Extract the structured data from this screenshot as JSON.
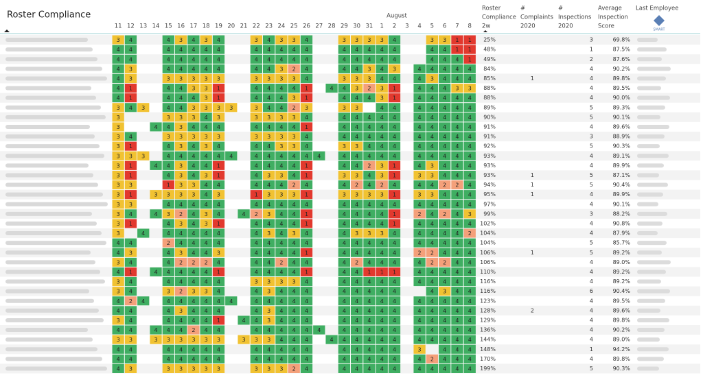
{
  "header": {
    "title": "Roster Compliance",
    "month": "August",
    "days": [
      11,
      12,
      13,
      14,
      15,
      16,
      17,
      18,
      19,
      20,
      21,
      22,
      23,
      24,
      25,
      26,
      27,
      28,
      29,
      30,
      31,
      1,
      2,
      3,
      4,
      5,
      6,
      7,
      8
    ]
  },
  "columns": [
    [
      "Roster",
      "Compliance",
      "2w"
    ],
    [
      "#",
      "Complaints",
      "2020"
    ],
    [
      "#",
      "Inspections",
      "2020"
    ],
    [
      "Average",
      "Inspection",
      "Score"
    ],
    [
      "Last Employee"
    ]
  ],
  "logo": "SMART",
  "palette": {
    "1": "#e2392e",
    "2": "#f4a07a",
    "3": "#f1c232",
    "4": "#3fae62"
  },
  "rows": [
    {
      "cells": [
        3,
        4,
        null,
        null,
        4,
        3,
        4,
        3,
        4,
        null,
        null,
        3,
        4,
        3,
        3,
        4,
        null,
        null,
        3,
        3,
        3,
        3,
        4,
        null,
        null,
        3,
        3,
        1,
        1
      ],
      "compliance": "25%",
      "complaints": null,
      "inspections": 3,
      "score": "69.8%"
    },
    {
      "cells": [
        4,
        4,
        null,
        null,
        4,
        4,
        4,
        4,
        4,
        null,
        null,
        4,
        4,
        4,
        4,
        4,
        null,
        null,
        4,
        4,
        4,
        4,
        4,
        null,
        null,
        4,
        4,
        1,
        1
      ],
      "compliance": "48%",
      "complaints": null,
      "inspections": 1,
      "score": "87.5%"
    },
    {
      "cells": [
        4,
        4,
        null,
        null,
        4,
        4,
        4,
        4,
        4,
        null,
        null,
        4,
        4,
        4,
        4,
        4,
        null,
        null,
        4,
        4,
        4,
        4,
        4,
        null,
        null,
        4,
        4,
        4,
        1
      ],
      "compliance": "49%",
      "complaints": null,
      "inspections": 2,
      "score": "87.6%"
    },
    {
      "cells": [
        4,
        3,
        null,
        null,
        4,
        4,
        4,
        4,
        4,
        null,
        null,
        4,
        4,
        3,
        2,
        4,
        null,
        null,
        4,
        4,
        3,
        4,
        3,
        null,
        4,
        4,
        4,
        4,
        4
      ],
      "compliance": "84%",
      "complaints": null,
      "inspections": 4,
      "score": "90.2%"
    },
    {
      "cells": [
        4,
        3,
        null,
        null,
        3,
        3,
        3,
        3,
        3,
        null,
        null,
        3,
        3,
        3,
        3,
        4,
        null,
        null,
        3,
        3,
        3,
        4,
        4,
        null,
        4,
        3,
        4,
        4,
        4
      ],
      "compliance": "85%",
      "complaints": 1,
      "inspections": 4,
      "score": "89.8%"
    },
    {
      "cells": [
        4,
        1,
        null,
        null,
        4,
        4,
        3,
        3,
        1,
        null,
        null,
        4,
        4,
        4,
        4,
        1,
        null,
        4,
        4,
        3,
        2,
        3,
        1,
        null,
        4,
        4,
        4,
        3,
        3
      ],
      "compliance": "88%",
      "complaints": null,
      "inspections": 4,
      "score": "89.5%"
    },
    {
      "cells": [
        4,
        1,
        null,
        null,
        4,
        4,
        4,
        3,
        1,
        null,
        null,
        4,
        4,
        4,
        3,
        1,
        null,
        null,
        4,
        4,
        4,
        3,
        1,
        null,
        4,
        4,
        4,
        4,
        4
      ],
      "compliance": "88%",
      "complaints": null,
      "inspections": 4,
      "score": "90.0%"
    },
    {
      "cells": [
        3,
        4,
        3,
        null,
        4,
        4,
        3,
        3,
        3,
        3,
        null,
        3,
        4,
        4,
        2,
        3,
        null,
        null,
        3,
        3,
        null,
        4,
        4,
        null,
        4,
        4,
        4,
        4,
        4
      ],
      "compliance": "89%",
      "complaints": null,
      "inspections": 5,
      "score": "89.3%"
    },
    {
      "cells": [
        3,
        null,
        null,
        null,
        3,
        3,
        3,
        4,
        3,
        null,
        null,
        3,
        3,
        3,
        3,
        4,
        null,
        null,
        4,
        4,
        4,
        4,
        4,
        null,
        4,
        4,
        4,
        4,
        4
      ],
      "compliance": "90%",
      "complaints": null,
      "inspections": 5,
      "score": "90.1%"
    },
    {
      "cells": [
        3,
        null,
        null,
        4,
        4,
        3,
        4,
        4,
        4,
        null,
        null,
        4,
        4,
        4,
        4,
        1,
        null,
        null,
        4,
        4,
        4,
        4,
        4,
        null,
        4,
        4,
        4,
        4,
        4
      ],
      "compliance": "91%",
      "complaints": null,
      "inspections": 4,
      "score": "89.6%"
    },
    {
      "cells": [
        3,
        4,
        null,
        null,
        3,
        3,
        3,
        3,
        3,
        null,
        null,
        3,
        3,
        3,
        3,
        4,
        null,
        null,
        4,
        4,
        4,
        4,
        4,
        null,
        4,
        4,
        4,
        4,
        4
      ],
      "compliance": "91%",
      "complaints": null,
      "inspections": 3,
      "score": "88.9%"
    },
    {
      "cells": [
        3,
        1,
        null,
        null,
        4,
        3,
        4,
        3,
        4,
        null,
        null,
        4,
        4,
        3,
        3,
        4,
        null,
        null,
        3,
        3,
        4,
        4,
        4,
        null,
        4,
        4,
        4,
        4,
        4
      ],
      "compliance": "92%",
      "complaints": null,
      "inspections": 5,
      "score": "90.3%"
    },
    {
      "cells": [
        3,
        3,
        3,
        null,
        4,
        4,
        4,
        4,
        4,
        4,
        null,
        4,
        4,
        4,
        4,
        4,
        4,
        null,
        4,
        4,
        4,
        4,
        4,
        null,
        4,
        4,
        4,
        4,
        4
      ],
      "compliance": "93%",
      "complaints": null,
      "inspections": 4,
      "score": "89.1%"
    },
    {
      "cells": [
        3,
        1,
        null,
        4,
        4,
        3,
        4,
        4,
        1,
        null,
        null,
        4,
        4,
        4,
        4,
        1,
        null,
        null,
        4,
        4,
        2,
        3,
        1,
        null,
        4,
        3,
        4,
        4,
        4
      ],
      "compliance": "93%",
      "complaints": null,
      "inspections": 4,
      "score": "89.9%"
    },
    {
      "cells": [
        3,
        1,
        null,
        null,
        4,
        3,
        4,
        3,
        1,
        null,
        null,
        4,
        3,
        3,
        4,
        1,
        null,
        null,
        3,
        3,
        4,
        3,
        1,
        null,
        3,
        3,
        4,
        4,
        4
      ],
      "compliance": "93%",
      "complaints": 1,
      "inspections": 5,
      "score": "87.1%"
    },
    {
      "cells": [
        3,
        3,
        null,
        null,
        1,
        3,
        3,
        4,
        4,
        null,
        null,
        4,
        4,
        4,
        2,
        4,
        null,
        null,
        4,
        2,
        4,
        2,
        4,
        null,
        4,
        4,
        2,
        2,
        4
      ],
      "compliance": "94%",
      "complaints": 1,
      "inspections": 5,
      "score": "90.4%"
    },
    {
      "cells": [
        3,
        1,
        null,
        3,
        3,
        3,
        3,
        4,
        3,
        null,
        null,
        1,
        3,
        3,
        3,
        1,
        null,
        null,
        3,
        3,
        3,
        3,
        1,
        null,
        3,
        3,
        4,
        4,
        4
      ],
      "compliance": "95%",
      "complaints": 1,
      "inspections": 4,
      "score": "89.9%"
    },
    {
      "cells": [
        3,
        3,
        null,
        null,
        4,
        4,
        4,
        4,
        4,
        null,
        null,
        4,
        4,
        4,
        4,
        4,
        null,
        null,
        4,
        4,
        4,
        4,
        4,
        null,
        4,
        4,
        4,
        4,
        4
      ],
      "compliance": "97%",
      "complaints": null,
      "inspections": 4,
      "score": "90.1%"
    },
    {
      "cells": [
        3,
        4,
        null,
        4,
        3,
        2,
        4,
        3,
        4,
        null,
        4,
        2,
        3,
        4,
        4,
        1,
        null,
        null,
        4,
        4,
        4,
        4,
        1,
        null,
        2,
        4,
        2,
        4,
        3
      ],
      "compliance": "99%",
      "complaints": null,
      "inspections": 3,
      "score": "88.2%"
    },
    {
      "cells": [
        3,
        1,
        null,
        null,
        4,
        3,
        4,
        3,
        1,
        null,
        null,
        4,
        4,
        4,
        4,
        1,
        null,
        null,
        4,
        4,
        4,
        4,
        1,
        null,
        4,
        4,
        4,
        4,
        4
      ],
      "compliance": "102%",
      "complaints": null,
      "inspections": 4,
      "score": "90.8%"
    },
    {
      "cells": [
        3,
        null,
        4,
        null,
        4,
        4,
        4,
        4,
        4,
        null,
        null,
        4,
        3,
        4,
        3,
        4,
        null,
        null,
        4,
        3,
        3,
        3,
        4,
        null,
        4,
        4,
        4,
        4,
        2
      ],
      "compliance": "104%",
      "complaints": null,
      "inspections": 4,
      "score": "87.9%"
    },
    {
      "cells": [
        4,
        4,
        null,
        null,
        2,
        4,
        4,
        4,
        4,
        null,
        null,
        4,
        4,
        4,
        4,
        4,
        null,
        null,
        4,
        4,
        4,
        4,
        4,
        null,
        4,
        4,
        4,
        4,
        4
      ],
      "compliance": "104%",
      "complaints": null,
      "inspections": 5,
      "score": "85.7%"
    },
    {
      "cells": [
        4,
        3,
        null,
        null,
        4,
        3,
        4,
        4,
        3,
        null,
        null,
        4,
        4,
        4,
        4,
        1,
        null,
        null,
        4,
        4,
        4,
        4,
        4,
        null,
        2,
        2,
        4,
        4,
        4
      ],
      "compliance": "106%",
      "complaints": 1,
      "inspections": 5,
      "score": "89.2%"
    },
    {
      "cells": [
        3,
        4,
        null,
        null,
        4,
        2,
        2,
        2,
        4,
        null,
        null,
        4,
        4,
        2,
        4,
        4,
        null,
        null,
        4,
        2,
        4,
        4,
        4,
        null,
        4,
        2,
        2,
        4,
        4
      ],
      "compliance": "106%",
      "complaints": null,
      "inspections": 4,
      "score": "89.0%"
    },
    {
      "cells": [
        4,
        1,
        null,
        4,
        4,
        4,
        4,
        4,
        1,
        null,
        null,
        4,
        4,
        4,
        4,
        1,
        null,
        null,
        4,
        4,
        1,
        1,
        1,
        null,
        4,
        4,
        4,
        4,
        4
      ],
      "compliance": "110%",
      "complaints": null,
      "inspections": 4,
      "score": "89.2%"
    },
    {
      "cells": [
        3,
        4,
        null,
        null,
        4,
        4,
        4,
        4,
        4,
        null,
        null,
        3,
        3,
        3,
        3,
        4,
        null,
        null,
        4,
        4,
        4,
        4,
        4,
        null,
        4,
        4,
        4,
        4,
        4
      ],
      "compliance": "116%",
      "complaints": null,
      "inspections": 4,
      "score": "89.2%"
    },
    {
      "cells": [
        3,
        4,
        null,
        null,
        3,
        2,
        3,
        3,
        4,
        null,
        null,
        4,
        3,
        4,
        4,
        4,
        null,
        null,
        4,
        4,
        4,
        4,
        4,
        null,
        null,
        4,
        3,
        4,
        4
      ],
      "compliance": "116%",
      "complaints": null,
      "inspections": 6,
      "score": "90.4%"
    },
    {
      "cells": [
        4,
        2,
        4,
        null,
        4,
        4,
        4,
        4,
        4,
        4,
        null,
        4,
        4,
        4,
        4,
        4,
        null,
        null,
        4,
        4,
        4,
        4,
        4,
        null,
        4,
        4,
        4,
        4,
        4
      ],
      "compliance": "123%",
      "complaints": null,
      "inspections": 4,
      "score": "89.5%"
    },
    {
      "cells": [
        4,
        4,
        null,
        null,
        4,
        3,
        4,
        4,
        4,
        null,
        null,
        4,
        3,
        4,
        4,
        4,
        null,
        null,
        4,
        4,
        4,
        4,
        4,
        null,
        4,
        4,
        4,
        4,
        4
      ],
      "compliance": "128%",
      "complaints": 2,
      "inspections": 4,
      "score": "89.6%"
    },
    {
      "cells": [
        3,
        4,
        null,
        null,
        4,
        4,
        4,
        4,
        1,
        null,
        4,
        4,
        3,
        4,
        4,
        4,
        null,
        null,
        4,
        4,
        4,
        4,
        4,
        null,
        4,
        4,
        4,
        4,
        4
      ],
      "compliance": "129%",
      "complaints": null,
      "inspections": 4,
      "score": "89.8%"
    },
    {
      "cells": [
        4,
        4,
        null,
        4,
        4,
        4,
        2,
        4,
        4,
        null,
        null,
        4,
        4,
        4,
        4,
        4,
        4,
        null,
        4,
        4,
        4,
        4,
        4,
        null,
        4,
        4,
        4,
        4,
        4
      ],
      "compliance": "136%",
      "complaints": null,
      "inspections": 4,
      "score": "90.2%"
    },
    {
      "cells": [
        3,
        3,
        null,
        3,
        3,
        3,
        3,
        3,
        3,
        null,
        3,
        3,
        3,
        4,
        4,
        4,
        null,
        4,
        4,
        4,
        4,
        4,
        4,
        null,
        4,
        4,
        4,
        4,
        4
      ],
      "compliance": "144%",
      "complaints": null,
      "inspections": 4,
      "score": "89.0%"
    },
    {
      "cells": [
        4,
        4,
        null,
        null,
        4,
        4,
        4,
        4,
        4,
        null,
        null,
        4,
        4,
        4,
        4,
        4,
        null,
        null,
        4,
        4,
        4,
        4,
        4,
        null,
        3,
        null,
        4,
        4,
        4
      ],
      "compliance": "148%",
      "complaints": null,
      "inspections": 1,
      "score": "94.2%"
    },
    {
      "cells": [
        4,
        4,
        null,
        null,
        4,
        4,
        4,
        4,
        4,
        null,
        null,
        4,
        4,
        4,
        4,
        4,
        null,
        null,
        4,
        4,
        4,
        4,
        4,
        null,
        4,
        2,
        4,
        4,
        4
      ],
      "compliance": "170%",
      "complaints": null,
      "inspections": 4,
      "score": "89.8%"
    },
    {
      "cells": [
        4,
        3,
        null,
        null,
        3,
        3,
        3,
        3,
        3,
        null,
        null,
        3,
        3,
        3,
        2,
        4,
        null,
        null,
        4,
        4,
        4,
        4,
        4,
        null,
        4,
        4,
        4,
        4,
        4
      ],
      "compliance": "199%",
      "complaints": null,
      "inspections": 5,
      "score": "90.3%"
    }
  ]
}
